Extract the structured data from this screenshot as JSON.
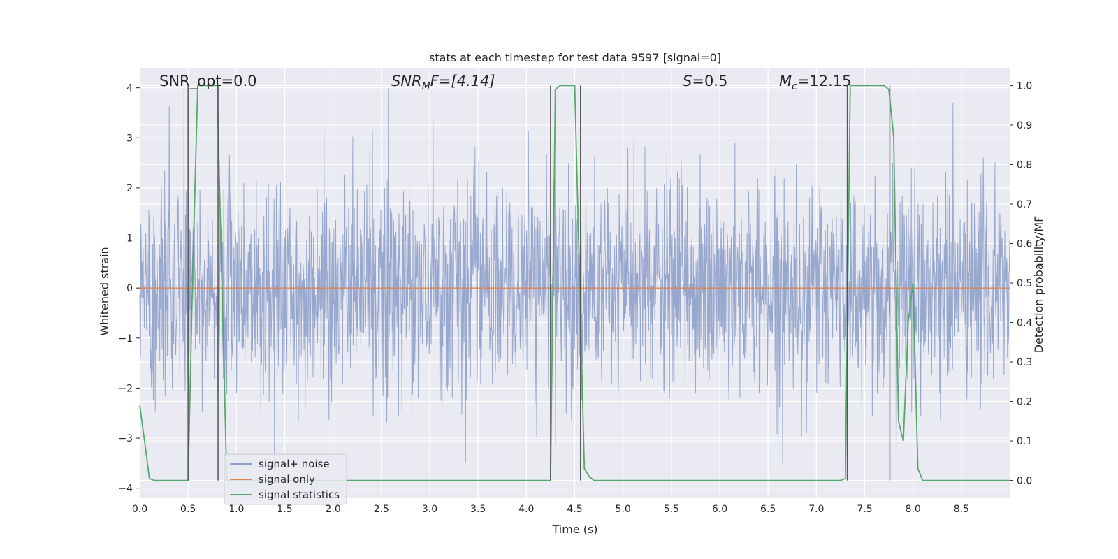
{
  "chart_data": {
    "type": "line",
    "title": "stats at each timestep for test data 9597 [signal=0]",
    "xlabel": "Time (s)",
    "ylabel": "Whitened strain",
    "ylabel_right": "Detection probability/MF",
    "xlim": [
      0.0,
      9.0
    ],
    "ylim": [
      -4.2,
      4.4
    ],
    "ylim_right": [
      -0.045,
      1.045
    ],
    "x_ticks": [
      "0.0",
      "0.5",
      "1.0",
      "1.5",
      "2.0",
      "2.5",
      "3.0",
      "3.5",
      "4.0",
      "4.5",
      "5.0",
      "5.5",
      "6.0",
      "6.5",
      "7.0",
      "7.5",
      "8.0",
      "8.5"
    ],
    "y_ticks": [
      "4",
      "3",
      "2",
      "1",
      "0",
      "−1",
      "−2",
      "−3",
      "−4"
    ],
    "y_ticks_right": [
      "1.0",
      "0.9",
      "0.8",
      "0.7",
      "0.6",
      "0.5",
      "0.4",
      "0.3",
      "0.2",
      "0.1",
      "0.0"
    ],
    "grid": true,
    "legend_position": "lower-left",
    "annotations": {
      "snr_opt": "SNR_opt=0.0",
      "snr_mf_sym": "SNR",
      "snr_mf_sub": "M",
      "snr_mf_rest": "F=[4.14]",
      "s_sym": "S",
      "s_rest": "=0.5",
      "mc_sym": "M",
      "mc_sub": "c",
      "mc_rest": "=12.15"
    },
    "series": [
      {
        "name": "signal+ noise",
        "color": "#8ea0c9",
        "description_kind": "whitened noise, approx. range -3.7 to 4.0"
      },
      {
        "name": "signal only",
        "color": "#dd8452",
        "x": [
          0.0,
          9.0
        ],
        "y": [
          0.0,
          0.0
        ]
      },
      {
        "name": "signal statistics",
        "color": "#55a868",
        "x": [
          0.0,
          0.05,
          0.1,
          0.15,
          0.2,
          0.3,
          0.4,
          0.5,
          0.55,
          0.6,
          0.7,
          0.8,
          0.9,
          1.0,
          1.5,
          2.0,
          2.5,
          3.0,
          3.5,
          4.0,
          4.25,
          4.3,
          4.35,
          4.4,
          4.5,
          4.6,
          4.65,
          4.7,
          5.0,
          6.0,
          7.0,
          7.25,
          7.3,
          7.35,
          7.4,
          7.5,
          7.6,
          7.7,
          7.75,
          7.8,
          7.85,
          7.9,
          7.95,
          8.0,
          8.05,
          8.1,
          8.15,
          8.2,
          8.5,
          9.0
        ],
        "y": [
          0.19,
          0.1,
          0.005,
          0.0,
          0.0,
          0.0,
          0.0,
          0.0,
          0.55,
          1.0,
          1.0,
          1.0,
          0.0,
          0.0,
          0.0,
          0.0,
          0.0,
          0.0,
          0.0,
          0.0,
          0.0,
          0.99,
          1.0,
          1.0,
          1.0,
          0.03,
          0.01,
          0.0,
          0.0,
          0.0,
          0.0,
          0.0,
          0.005,
          1.0,
          1.0,
          1.0,
          1.0,
          1.0,
          0.99,
          0.87,
          0.15,
          0.1,
          0.4,
          0.5,
          0.03,
          0.0,
          0.0,
          0.0,
          0.0,
          0.0
        ]
      }
    ],
    "vlines_x": [
      0.5,
      0.81,
      4.25,
      4.56,
      7.32,
      7.76
    ],
    "vline_color": "#555555"
  }
}
